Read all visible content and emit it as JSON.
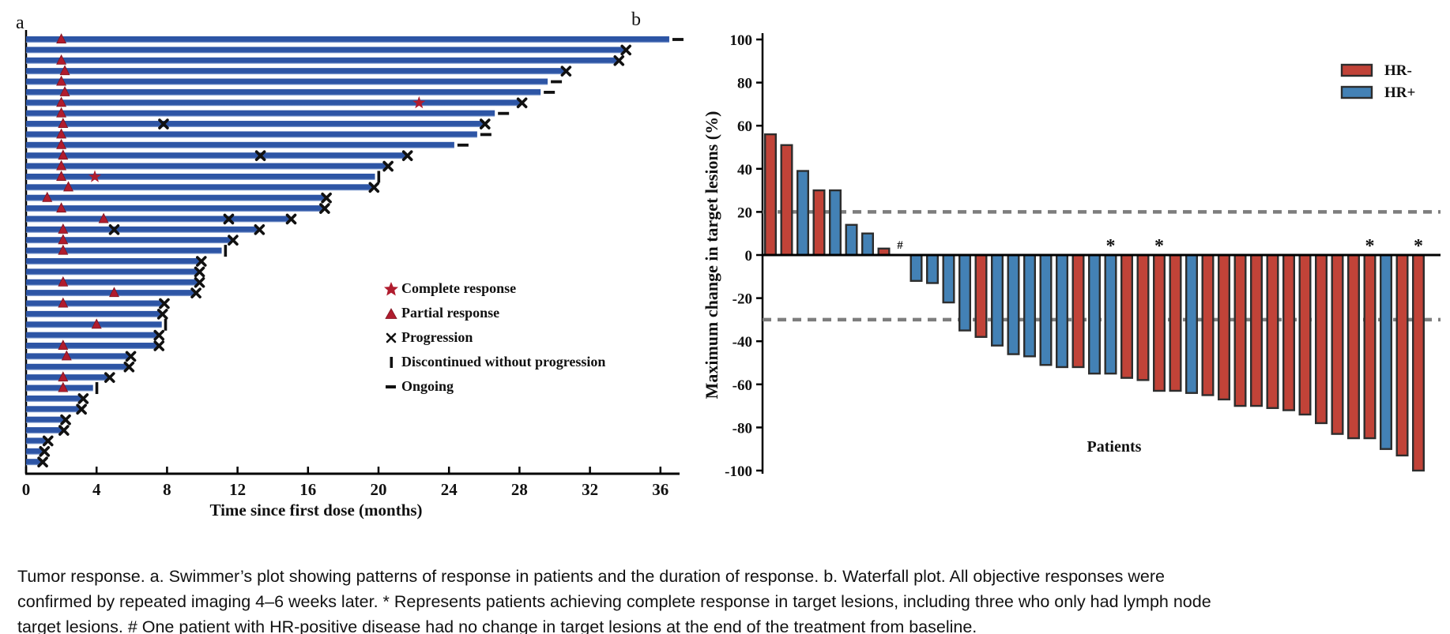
{
  "caption": "Tumor response. a. Swimmer’s plot showing patterns of response in patients and the duration of response. b. Waterfall plot. All objective responses were confirmed by repeated imaging 4–6 weeks later. * Represents patients achieving complete response in target lesions, including three who only had lymph node target lesions. # One patient with HR-positive disease had no change in target lesions at the end of the treatment from baseline.",
  "colors": {
    "swimmer_bar": "#2d55a5",
    "swimmer_bar_edge": "#9db3dc",
    "response_red": "#b01c2e",
    "marker_black": "#111111",
    "waterfall_red": "#c14338",
    "waterfall_blue": "#4381b5",
    "bar_outline": "#2d2d2d",
    "dashed_line": "#7d7d7d",
    "axis": "#000000"
  },
  "chart_data": [
    {
      "type": "swimmer",
      "title": "a",
      "xlabel": "Time since first dose (months)",
      "xlim": [
        0,
        37.5
      ],
      "xticks": [
        0,
        4,
        8,
        12,
        16,
        20,
        24,
        28,
        32,
        36
      ],
      "grid": false,
      "legend_position": "right-middle",
      "legend": [
        {
          "symbol": "star",
          "label": "Complete response"
        },
        {
          "symbol": "triangle",
          "label": "Partial response"
        },
        {
          "symbol": "cross",
          "label": "Progression"
        },
        {
          "symbol": "vbar",
          "label": "Discontinued without progression"
        },
        {
          "symbol": "dash",
          "label": "Ongoing"
        }
      ],
      "patients": [
        {
          "duration": 36.5,
          "pr": 2.0,
          "end": "ongoing"
        },
        {
          "duration": 34.0,
          "end": "progression"
        },
        {
          "duration": 33.6,
          "pr": 2.0,
          "end": "progression"
        },
        {
          "duration": 30.6,
          "pr": 2.2,
          "end": "progression"
        },
        {
          "duration": 29.6,
          "pr": 2.0,
          "end": "ongoing"
        },
        {
          "duration": 29.2,
          "pr": 2.2,
          "end": "ongoing"
        },
        {
          "duration": 28.1,
          "pr": 2.0,
          "cr": 22.3,
          "end": "progression"
        },
        {
          "duration": 26.6,
          "pr": 2.0,
          "end": "ongoing"
        },
        {
          "duration": 26.0,
          "pr": 2.1,
          "prog": 7.8,
          "end": "progression"
        },
        {
          "duration": 25.6,
          "pr": 2.0,
          "end": "ongoing"
        },
        {
          "duration": 24.3,
          "pr": 2.0,
          "end": "ongoing"
        },
        {
          "duration": 21.6,
          "pr": 2.1,
          "prog": 13.3,
          "end": "progression"
        },
        {
          "duration": 20.5,
          "pr": 2.0,
          "end": "progression"
        },
        {
          "duration": 19.8,
          "pr": 2.0,
          "cr": 3.9,
          "end": "discontinued"
        },
        {
          "duration": 19.7,
          "pr": 2.4,
          "end": "progression"
        },
        {
          "duration": 17.0,
          "pr": 1.2,
          "end": "progression"
        },
        {
          "duration": 16.9,
          "pr": 2.0,
          "end": "progression"
        },
        {
          "duration": 15.0,
          "pr": 4.4,
          "prog": 11.5,
          "end": "progression"
        },
        {
          "duration": 13.2,
          "pr": 2.1,
          "prog": 5.0,
          "end": "progression"
        },
        {
          "duration": 11.7,
          "pr": 2.1,
          "end": "progression"
        },
        {
          "duration": 11.1,
          "pr": 2.1,
          "end": "discontinued"
        },
        {
          "duration": 9.9,
          "end": "progression"
        },
        {
          "duration": 9.8,
          "end": "progression"
        },
        {
          "duration": 9.8,
          "pr": 2.1,
          "end": "progression"
        },
        {
          "duration": 9.6,
          "pr": 5.0,
          "end": "progression"
        },
        {
          "duration": 7.8,
          "pr": 2.1,
          "end": "progression"
        },
        {
          "duration": 7.7,
          "end": "progression"
        },
        {
          "duration": 7.7,
          "pr": 4.0,
          "end": "discontinued"
        },
        {
          "duration": 7.5,
          "end": "progression"
        },
        {
          "duration": 7.5,
          "pr": 2.1,
          "end": "progression"
        },
        {
          "duration": 5.9,
          "pr": 2.3,
          "end": "progression"
        },
        {
          "duration": 5.8,
          "end": "progression"
        },
        {
          "duration": 4.7,
          "pr": 2.1,
          "end": "progression"
        },
        {
          "duration": 3.8,
          "pr": 2.1,
          "end": "discontinued"
        },
        {
          "duration": 3.2,
          "end": "progression"
        },
        {
          "duration": 3.1,
          "end": "progression"
        },
        {
          "duration": 2.2,
          "end": "progression"
        },
        {
          "duration": 2.1,
          "end": "progression"
        },
        {
          "duration": 1.2,
          "end": "progression"
        },
        {
          "duration": 1.0,
          "end": "progression"
        },
        {
          "duration": 0.9,
          "end": "progression"
        }
      ]
    },
    {
      "type": "bar",
      "title": "b",
      "xlabel": "Patients",
      "ylabel": "Maximum change in target lesions (%)",
      "ylim": [
        -100,
        100
      ],
      "yticks": [
        100,
        80,
        60,
        40,
        20,
        0,
        -20,
        -40,
        -60,
        -80,
        -100
      ],
      "ref_lines": [
        20,
        -30
      ],
      "grid": false,
      "legend_position": "top-right",
      "legend": [
        {
          "name": "HR-",
          "color_key": "waterfall_red"
        },
        {
          "name": "HR+",
          "color_key": "waterfall_blue"
        }
      ],
      "values": [
        {
          "v": 56,
          "g": "HR-"
        },
        {
          "v": 51,
          "g": "HR-"
        },
        {
          "v": 39,
          "g": "HR+"
        },
        {
          "v": 30,
          "g": "HR-"
        },
        {
          "v": 30,
          "g": "HR+"
        },
        {
          "v": 14,
          "g": "HR+"
        },
        {
          "v": 10,
          "g": "HR+"
        },
        {
          "v": 3,
          "g": "HR-"
        },
        {
          "v": 0,
          "g": "HR+",
          "mark": "#"
        },
        {
          "v": -12,
          "g": "HR+"
        },
        {
          "v": -13,
          "g": "HR+"
        },
        {
          "v": -22,
          "g": "HR+"
        },
        {
          "v": -35,
          "g": "HR+"
        },
        {
          "v": -38,
          "g": "HR-"
        },
        {
          "v": -42,
          "g": "HR+"
        },
        {
          "v": -46,
          "g": "HR+"
        },
        {
          "v": -47,
          "g": "HR+"
        },
        {
          "v": -51,
          "g": "HR+"
        },
        {
          "v": -52,
          "g": "HR+"
        },
        {
          "v": -52,
          "g": "HR-"
        },
        {
          "v": -55,
          "g": "HR+"
        },
        {
          "v": -55,
          "g": "HR+",
          "mark": "*"
        },
        {
          "v": -57,
          "g": "HR-"
        },
        {
          "v": -58,
          "g": "HR-"
        },
        {
          "v": -63,
          "g": "HR-",
          "mark": "*"
        },
        {
          "v": -63,
          "g": "HR-"
        },
        {
          "v": -64,
          "g": "HR+"
        },
        {
          "v": -65,
          "g": "HR-"
        },
        {
          "v": -67,
          "g": "HR-"
        },
        {
          "v": -70,
          "g": "HR-"
        },
        {
          "v": -70,
          "g": "HR-"
        },
        {
          "v": -71,
          "g": "HR-"
        },
        {
          "v": -72,
          "g": "HR-"
        },
        {
          "v": -74,
          "g": "HR-"
        },
        {
          "v": -78,
          "g": "HR-"
        },
        {
          "v": -83,
          "g": "HR-"
        },
        {
          "v": -85,
          "g": "HR-"
        },
        {
          "v": -85,
          "g": "HR-",
          "mark": "*"
        },
        {
          "v": -90,
          "g": "HR+"
        },
        {
          "v": -93,
          "g": "HR-"
        },
        {
          "v": -100,
          "g": "HR-",
          "mark": "*"
        }
      ]
    }
  ]
}
